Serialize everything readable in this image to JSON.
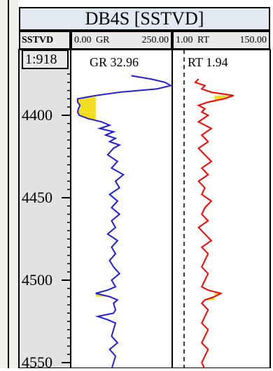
{
  "title": "DB4S [SSTVD]",
  "header": {
    "depth_col": "SSTVD",
    "gr_min": "0.00",
    "gr_name": "GR",
    "gr_max": "250.00",
    "rt_min": "1.00",
    "rt_name": "RT",
    "rt_max": "150.00"
  },
  "scale": "1:918",
  "readouts": {
    "gr": "GR 32.96",
    "rt": "RT 1.94"
  },
  "depth_ticks": [
    "4400",
    "4450",
    "4500",
    "4550"
  ],
  "colors": {
    "gr_curve": "#1f1fe0",
    "rt_curve": "#ff0000",
    "fill": "#f3dd1a",
    "track_bg": "#ffffff",
    "depth_bg": "#e2e2e2"
  },
  "chart_data": {
    "type": "line",
    "y_axis": "SSTVD depth",
    "y_ticks": [
      4400,
      4450,
      4500,
      4550
    ],
    "series": [
      {
        "name": "GR",
        "range": [
          0,
          250
        ],
        "depth": [
          4376,
          4378,
          4380,
          4382,
          4384,
          4386,
          4388,
          4390,
          4392,
          4394,
          4396,
          4398,
          4400,
          4402,
          4404,
          4406,
          4408,
          4410,
          4412,
          4414,
          4416,
          4418,
          4420,
          4424,
          4428,
          4432,
          4436,
          4440,
          4444,
          4448,
          4452,
          4456,
          4460,
          4464,
          4468,
          4472,
          4476,
          4480,
          4484,
          4488,
          4492,
          4496,
          4500,
          4504,
          4506,
          4508,
          4510,
          4512,
          4514,
          4518,
          4520,
          4522,
          4524,
          4526,
          4530,
          4534,
          4538,
          4542,
          4546,
          4550,
          4554
        ],
        "values": [
          150,
          200,
          235,
          250,
          215,
          120,
          60,
          14,
          14,
          20,
          16,
          14,
          18,
          40,
          75,
          95,
          70,
          105,
          85,
          110,
          95,
          120,
          105,
          90,
          115,
          100,
          130,
          110,
          120,
          95,
          115,
          100,
          120,
          100,
          110,
          90,
          115,
          100,
          110,
          95,
          105,
          120,
          100,
          110,
          90,
          60,
          95,
          115,
          105,
          110,
          105,
          65,
          90,
          110,
          105,
          100,
          115,
          95,
          110,
          105,
          100
        ]
      },
      {
        "name": "RT",
        "range": [
          1,
          150
        ],
        "depth": [
          4378,
          4380,
          4382,
          4384,
          4386,
          4388,
          4390,
          4392,
          4394,
          4396,
          4398,
          4400,
          4404,
          4408,
          4412,
          4416,
          4420,
          4424,
          4428,
          4432,
          4436,
          4440,
          4444,
          4448,
          4452,
          4456,
          4460,
          4464,
          4468,
          4472,
          4476,
          4480,
          4484,
          4488,
          4492,
          4496,
          4500,
          4504,
          4506,
          4508,
          4510,
          4512,
          4514,
          4518,
          4522,
          4526,
          4530,
          4534,
          4538,
          4542,
          4546,
          4550,
          4554
        ],
        "values": [
          40,
          35,
          50,
          45,
          60,
          95,
          80,
          55,
          40,
          50,
          45,
          55,
          40,
          60,
          45,
          55,
          40,
          50,
          60,
          45,
          55,
          40,
          50,
          45,
          60,
          50,
          45,
          55,
          40,
          50,
          60,
          45,
          55,
          50,
          45,
          55,
          50,
          45,
          55,
          75,
          65,
          50,
          45,
          55,
          50,
          45,
          55,
          50,
          45,
          55,
          50,
          45,
          50
        ]
      }
    ]
  }
}
